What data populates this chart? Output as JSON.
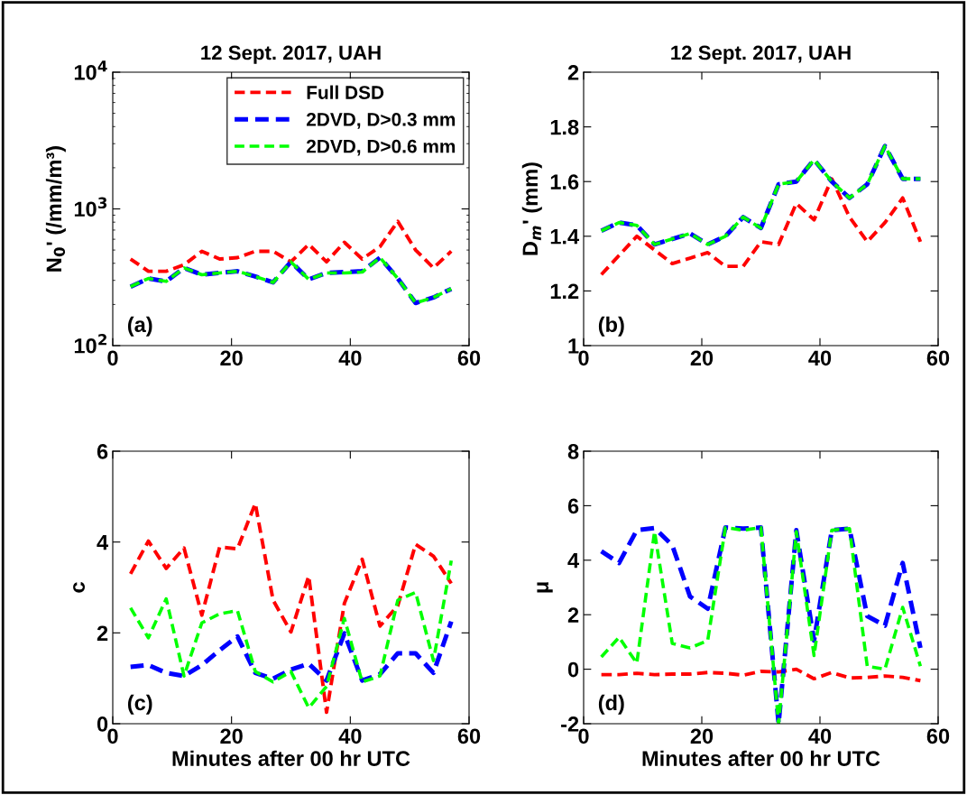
{
  "chart_data": [
    {
      "type": "line",
      "title": "12 Sept. 2017, UAH",
      "ylabel": "N$_{0}$' (/mm/m³)",
      "log": "y",
      "line_style": "dashed",
      "legend": "top right",
      "annotations": [
        "(a)"
      ],
      "x": [
        3,
        6,
        9,
        12,
        15,
        18,
        21,
        24,
        27,
        30,
        33,
        36,
        39,
        42,
        45,
        48,
        51,
        54,
        57
      ],
      "xlim": [
        0,
        60
      ],
      "xticks": [
        0,
        20,
        40,
        60
      ],
      "ylim": [
        100,
        10000
      ],
      "yticks": [
        {
          "value": 100,
          "label": "10$^{2}$"
        },
        {
          "value": 1000,
          "label": "10$^{3}$"
        },
        {
          "value": 10000,
          "label": "10$^{4}$"
        }
      ],
      "series": [
        {
          "name": "Full DSD",
          "color": "#ff0000",
          "values": [
            430,
            350,
            350,
            390,
            490,
            430,
            440,
            490,
            490,
            410,
            550,
            410,
            570,
            430,
            530,
            810,
            500,
            370,
            490
          ]
        },
        {
          "name": "2DVD, D>0.3 mm",
          "color": "#0000ff",
          "values": [
            270,
            310,
            295,
            370,
            330,
            340,
            350,
            320,
            290,
            410,
            305,
            340,
            345,
            350,
            440,
            310,
            205,
            225,
            260
          ]
        },
        {
          "name": "2DVD, D>0.6 mm",
          "color": "#00ff00",
          "values": [
            270,
            310,
            295,
            370,
            330,
            340,
            350,
            320,
            290,
            410,
            305,
            340,
            340,
            345,
            440,
            310,
            205,
            225,
            260
          ]
        }
      ]
    },
    {
      "type": "line",
      "title": "12 Sept. 2017, UAH",
      "ylabel": "D$_{m}$' (mm)",
      "line_style": "dashed",
      "annotations": [
        "(b)"
      ],
      "x": [
        3,
        6,
        9,
        12,
        15,
        18,
        21,
        24,
        27,
        30,
        33,
        36,
        39,
        42,
        45,
        48,
        51,
        54,
        57
      ],
      "xlim": [
        0,
        60
      ],
      "xticks": [
        0,
        20,
        40,
        60
      ],
      "ylim": [
        1,
        2
      ],
      "yticks": [
        1,
        1.2,
        1.4,
        1.6,
        1.8,
        2
      ],
      "series": [
        {
          "color": "#ff0000",
          "values": [
            1.26,
            1.33,
            1.4,
            1.35,
            1.3,
            1.32,
            1.34,
            1.29,
            1.29,
            1.38,
            1.37,
            1.52,
            1.46,
            1.61,
            1.47,
            1.38,
            1.45,
            1.54,
            1.38
          ]
        },
        {
          "color": "#0000ff",
          "values": [
            1.42,
            1.45,
            1.44,
            1.37,
            1.39,
            1.41,
            1.37,
            1.4,
            1.47,
            1.43,
            1.59,
            1.6,
            1.68,
            1.6,
            1.54,
            1.59,
            1.73,
            1.61,
            1.61
          ]
        },
        {
          "color": "#00ff00",
          "values": [
            1.42,
            1.45,
            1.44,
            1.37,
            1.39,
            1.41,
            1.37,
            1.4,
            1.47,
            1.43,
            1.59,
            1.6,
            1.68,
            1.6,
            1.54,
            1.59,
            1.73,
            1.61,
            1.61
          ]
        }
      ]
    },
    {
      "type": "line",
      "xlabel": "Minutes after 00 hr UTC",
      "ylabel": "c",
      "line_style": "dashed",
      "annotations": [
        "(c)"
      ],
      "x": [
        3,
        6,
        9,
        12,
        15,
        18,
        21,
        24,
        27,
        30,
        33,
        36,
        39,
        42,
        45,
        48,
        51,
        54,
        57
      ],
      "xlim": [
        0,
        60
      ],
      "xticks": [
        0,
        20,
        40,
        60
      ],
      "ylim": [
        0,
        6
      ],
      "yticks": [
        0,
        2,
        4,
        6
      ],
      "series": [
        {
          "color": "#ff0000",
          "values": [
            3.3,
            4.02,
            3.42,
            3.87,
            2.39,
            3.89,
            3.85,
            4.85,
            2.72,
            2.02,
            3.25,
            0.25,
            2.65,
            3.62,
            2.15,
            2.6,
            3.95,
            3.69,
            3.09
          ]
        },
        {
          "color": "#0000ff",
          "values": [
            1.25,
            1.29,
            1.12,
            1.05,
            1.29,
            1.62,
            1.92,
            1.12,
            0.99,
            1.19,
            1.32,
            0.95,
            1.99,
            0.95,
            1.09,
            1.55,
            1.55,
            1.12,
            2.25
          ]
        },
        {
          "color": "#00ff00",
          "values": [
            2.55,
            1.89,
            2.75,
            1.05,
            2.22,
            2.42,
            2.49,
            1.15,
            0.92,
            1.15,
            0.35,
            0.82,
            2.32,
            0.92,
            1.05,
            2.72,
            2.89,
            1.39,
            3.59
          ]
        }
      ]
    },
    {
      "type": "line",
      "xlabel": "Minutes after 00 hr UTC",
      "ylabel": "μ",
      "line_style": "dashed",
      "annotations": [
        "(d)"
      ],
      "x": [
        3,
        6,
        9,
        12,
        15,
        18,
        21,
        24,
        27,
        30,
        33,
        36,
        39,
        42,
        45,
        48,
        51,
        54,
        57
      ],
      "xlim": [
        0,
        60
      ],
      "xticks": [
        0,
        20,
        40,
        60
      ],
      "ylim": [
        -2,
        8
      ],
      "yticks": [
        -2,
        0,
        2,
        4,
        6,
        8
      ],
      "series": [
        {
          "color": "#ff0000",
          "values": [
            -0.2,
            -0.2,
            -0.15,
            -0.2,
            -0.18,
            -0.18,
            -0.12,
            -0.15,
            -0.22,
            -0.08,
            -0.1,
            0.0,
            -0.35,
            -0.12,
            -0.32,
            -0.3,
            -0.25,
            -0.3,
            -0.42
          ]
        },
        {
          "color": "#0000ff",
          "values": [
            4.33,
            3.9,
            5.1,
            5.18,
            4.55,
            2.67,
            2.22,
            5.2,
            5.16,
            5.2,
            -2.0,
            5.1,
            1.05,
            5.1,
            5.16,
            1.95,
            1.6,
            3.9,
            0.78
          ]
        },
        {
          "color": "#00ff00",
          "values": [
            0.45,
            1.17,
            0.22,
            5.05,
            0.95,
            0.78,
            1.05,
            5.2,
            5.1,
            5.2,
            -2.0,
            5.05,
            0.5,
            5.1,
            5.16,
            0.11,
            0.0,
            2.27,
            0.11
          ]
        }
      ]
    }
  ]
}
